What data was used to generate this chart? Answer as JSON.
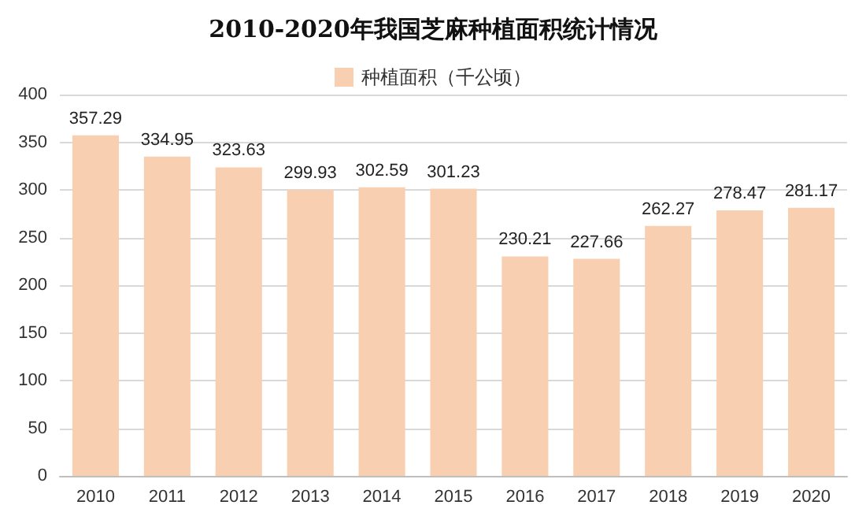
{
  "chart_data": {
    "type": "bar",
    "title": "2010-2020年我国芝麻种植面积统计情况",
    "categories": [
      "2010",
      "2011",
      "2012",
      "2013",
      "2014",
      "2015",
      "2016",
      "2017",
      "2018",
      "2019",
      "2020"
    ],
    "series": [
      {
        "name": "种植面积（千公顷）",
        "color": "#f8cfb0",
        "values": [
          357.29,
          334.95,
          323.63,
          299.93,
          302.59,
          301.23,
          230.21,
          227.66,
          262.27,
          278.47,
          281.17
        ]
      }
    ],
    "ylim": [
      0,
      400
    ],
    "yticks": [
      0,
      50,
      100,
      150,
      200,
      250,
      300,
      350,
      400
    ],
    "grid": "y",
    "legend": "top",
    "data_labels": true
  }
}
